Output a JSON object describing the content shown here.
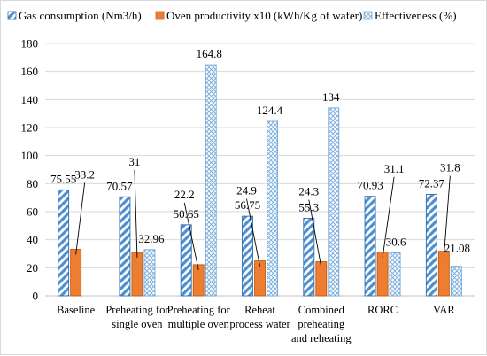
{
  "chart_data": {
    "type": "bar",
    "title": "",
    "xlabel": "",
    "ylabel": "",
    "ylim": [
      0,
      180
    ],
    "yticks": [
      0,
      20,
      40,
      60,
      80,
      100,
      120,
      140,
      160,
      180
    ],
    "grid": "horizontal",
    "legend_position": "top",
    "categories": [
      [
        "Baseline"
      ],
      [
        "Preheating for",
        "single oven"
      ],
      [
        "Preheating for",
        "multiple oven"
      ],
      [
        "Reheat",
        "process water"
      ],
      [
        "Combined",
        "preheating",
        "and reheating"
      ],
      [
        "RORC"
      ],
      [
        "VAR"
      ]
    ],
    "series": [
      {
        "name": "Gas consumption (Nm3/h)",
        "pattern": "diagonal-stripes",
        "color": "#4f8fcf",
        "values": [
          75.55,
          70.57,
          50.65,
          56.75,
          55.3,
          70.93,
          72.37
        ],
        "labels": [
          "75.55",
          "70.57",
          "50.65",
          "56.75",
          "55.3",
          "70.93",
          "72.37"
        ]
      },
      {
        "name": "Oven productivity x10 (kWh/Kg of wafer)",
        "pattern": "solid",
        "color": "#ed7d31",
        "values": [
          33.2,
          31,
          22.2,
          24.9,
          24.3,
          31.1,
          31.8
        ],
        "labels": [
          "33.2",
          "31",
          "22.2",
          "24.9",
          "24.3",
          "31.1",
          "31.8"
        ]
      },
      {
        "name": "Effectiveness (%)",
        "pattern": "crosshatch",
        "color": "#6fa8dc",
        "values": [
          null,
          32.96,
          164.8,
          124.4,
          134,
          30.6,
          21.08
        ],
        "labels": [
          "",
          "32.96",
          "164.8",
          "124.4",
          "134",
          "30.6",
          "21.08"
        ]
      }
    ]
  }
}
